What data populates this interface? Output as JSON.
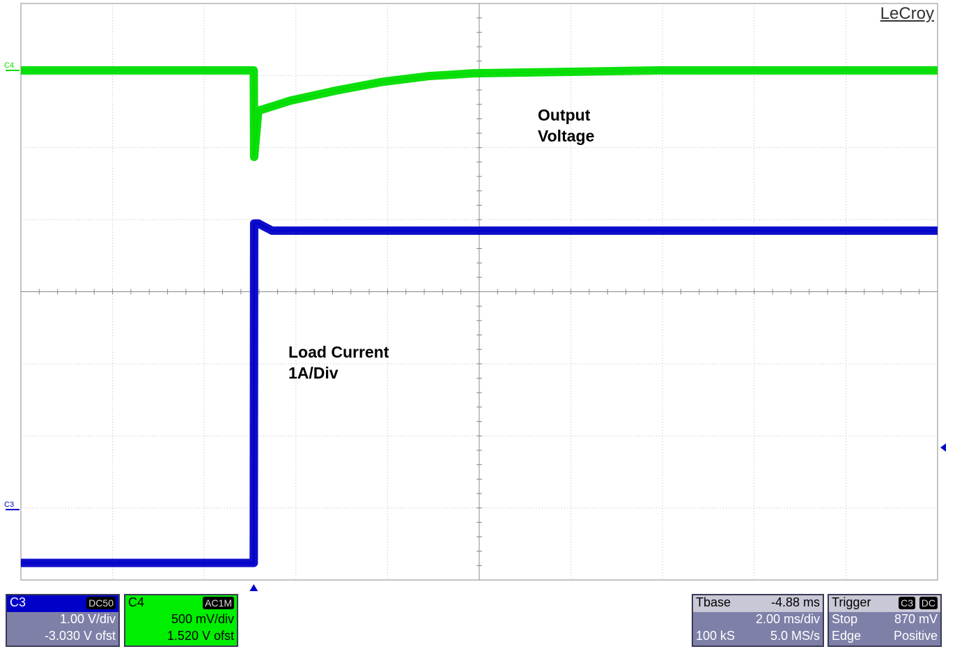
{
  "brand": "LeCroy",
  "annotations": {
    "output_voltage": "Output\nVoltage",
    "load_current": "Load Current\n1A/Div"
  },
  "channels": {
    "c3": {
      "name": "C3",
      "coupling": "DC50",
      "scale": "1.00 V/div",
      "offset": "-3.030 V ofst",
      "color": "#0000c8"
    },
    "c4": {
      "name": "C4",
      "coupling": "AC1M",
      "scale": "500 mV/div",
      "offset": "1.520 V ofst",
      "color": "#00dd00"
    }
  },
  "timebase": {
    "label": "Tbase",
    "delay": "-4.88 ms",
    "scale": "2.00 ms/div",
    "points": "100 kS",
    "rate": "5.0 MS/s"
  },
  "trigger": {
    "label": "Trigger",
    "source": "C3",
    "coupling": "DC",
    "mode": "Stop",
    "level": "870 mV",
    "type": "Edge",
    "slope": "Positive"
  },
  "chart_data": {
    "type": "line",
    "title": "",
    "xlabel": "",
    "ylabel": "",
    "grid": true,
    "x_unit": "ms",
    "xlim": [
      -14.88,
      5.12
    ],
    "ylim_div": [
      -4,
      4
    ],
    "series": [
      {
        "name": "C4",
        "unit": "V (AC coupled)",
        "color": "#00dd00",
        "x": [
          -14.88,
          -9.8,
          -9.79,
          -9.7,
          -9.4,
          -9.0,
          -8.0,
          -7.0,
          -6.0,
          -5.0,
          -3.0,
          -1.0,
          1.0,
          3.0,
          5.12
        ],
        "y": [
          0.0,
          0.0,
          -0.6,
          -0.28,
          -0.25,
          -0.21,
          -0.14,
          -0.08,
          -0.04,
          -0.02,
          -0.01,
          0.0,
          0.0,
          0.0,
          0.0
        ]
      },
      {
        "name": "C3",
        "unit": "A",
        "color": "#0000c8",
        "x": [
          -14.88,
          -9.8,
          -9.79,
          -9.7,
          -9.4,
          5.12
        ],
        "y": [
          -0.74,
          -0.74,
          3.97,
          3.97,
          3.87,
          3.87
        ]
      }
    ]
  }
}
